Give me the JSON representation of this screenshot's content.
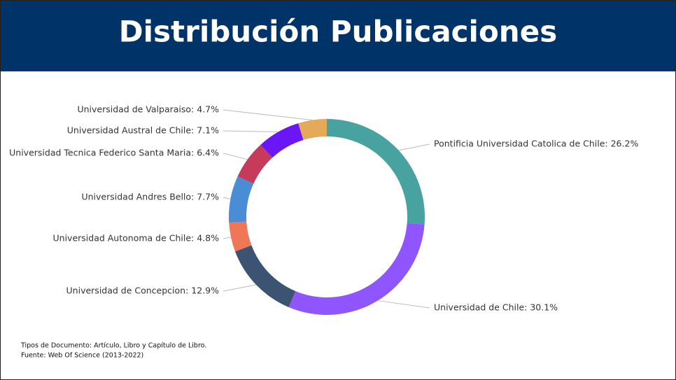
{
  "chart_data": {
    "type": "pie",
    "title": "Distribución Publicaciones",
    "values": [
      26.2,
      30.1,
      12.9,
      4.8,
      7.7,
      6.4,
      7.1,
      4.7
    ],
    "value_labels": [
      "Pontificia Universidad Catolica de Chile: 26.2%",
      "Universidad de Chile: 30.1%",
      "Universidad de Concepcion: 12.9%",
      "Universidad Autonoma de Chile: 4.8%",
      "Universidad Andres Bello: 7.7%",
      "Universidad Tecnica Federico Santa Maria: 6.4%",
      "Universidad Austral de Chile: 7.1%",
      "Universidad de Valparaiso: 4.7%"
    ],
    "colors": [
      "#48a3a0",
      "#8f55ff",
      "#3c5472",
      "#ef7758",
      "#4a8cd6",
      "#c63b5c",
      "#6a16f6",
      "#e5a95a"
    ],
    "notes": [
      "Tipos de Documento: Artículo, Libro y Capítulo de Libro.",
      "Fuente: Web Of Science (2013-2022)"
    ]
  }
}
